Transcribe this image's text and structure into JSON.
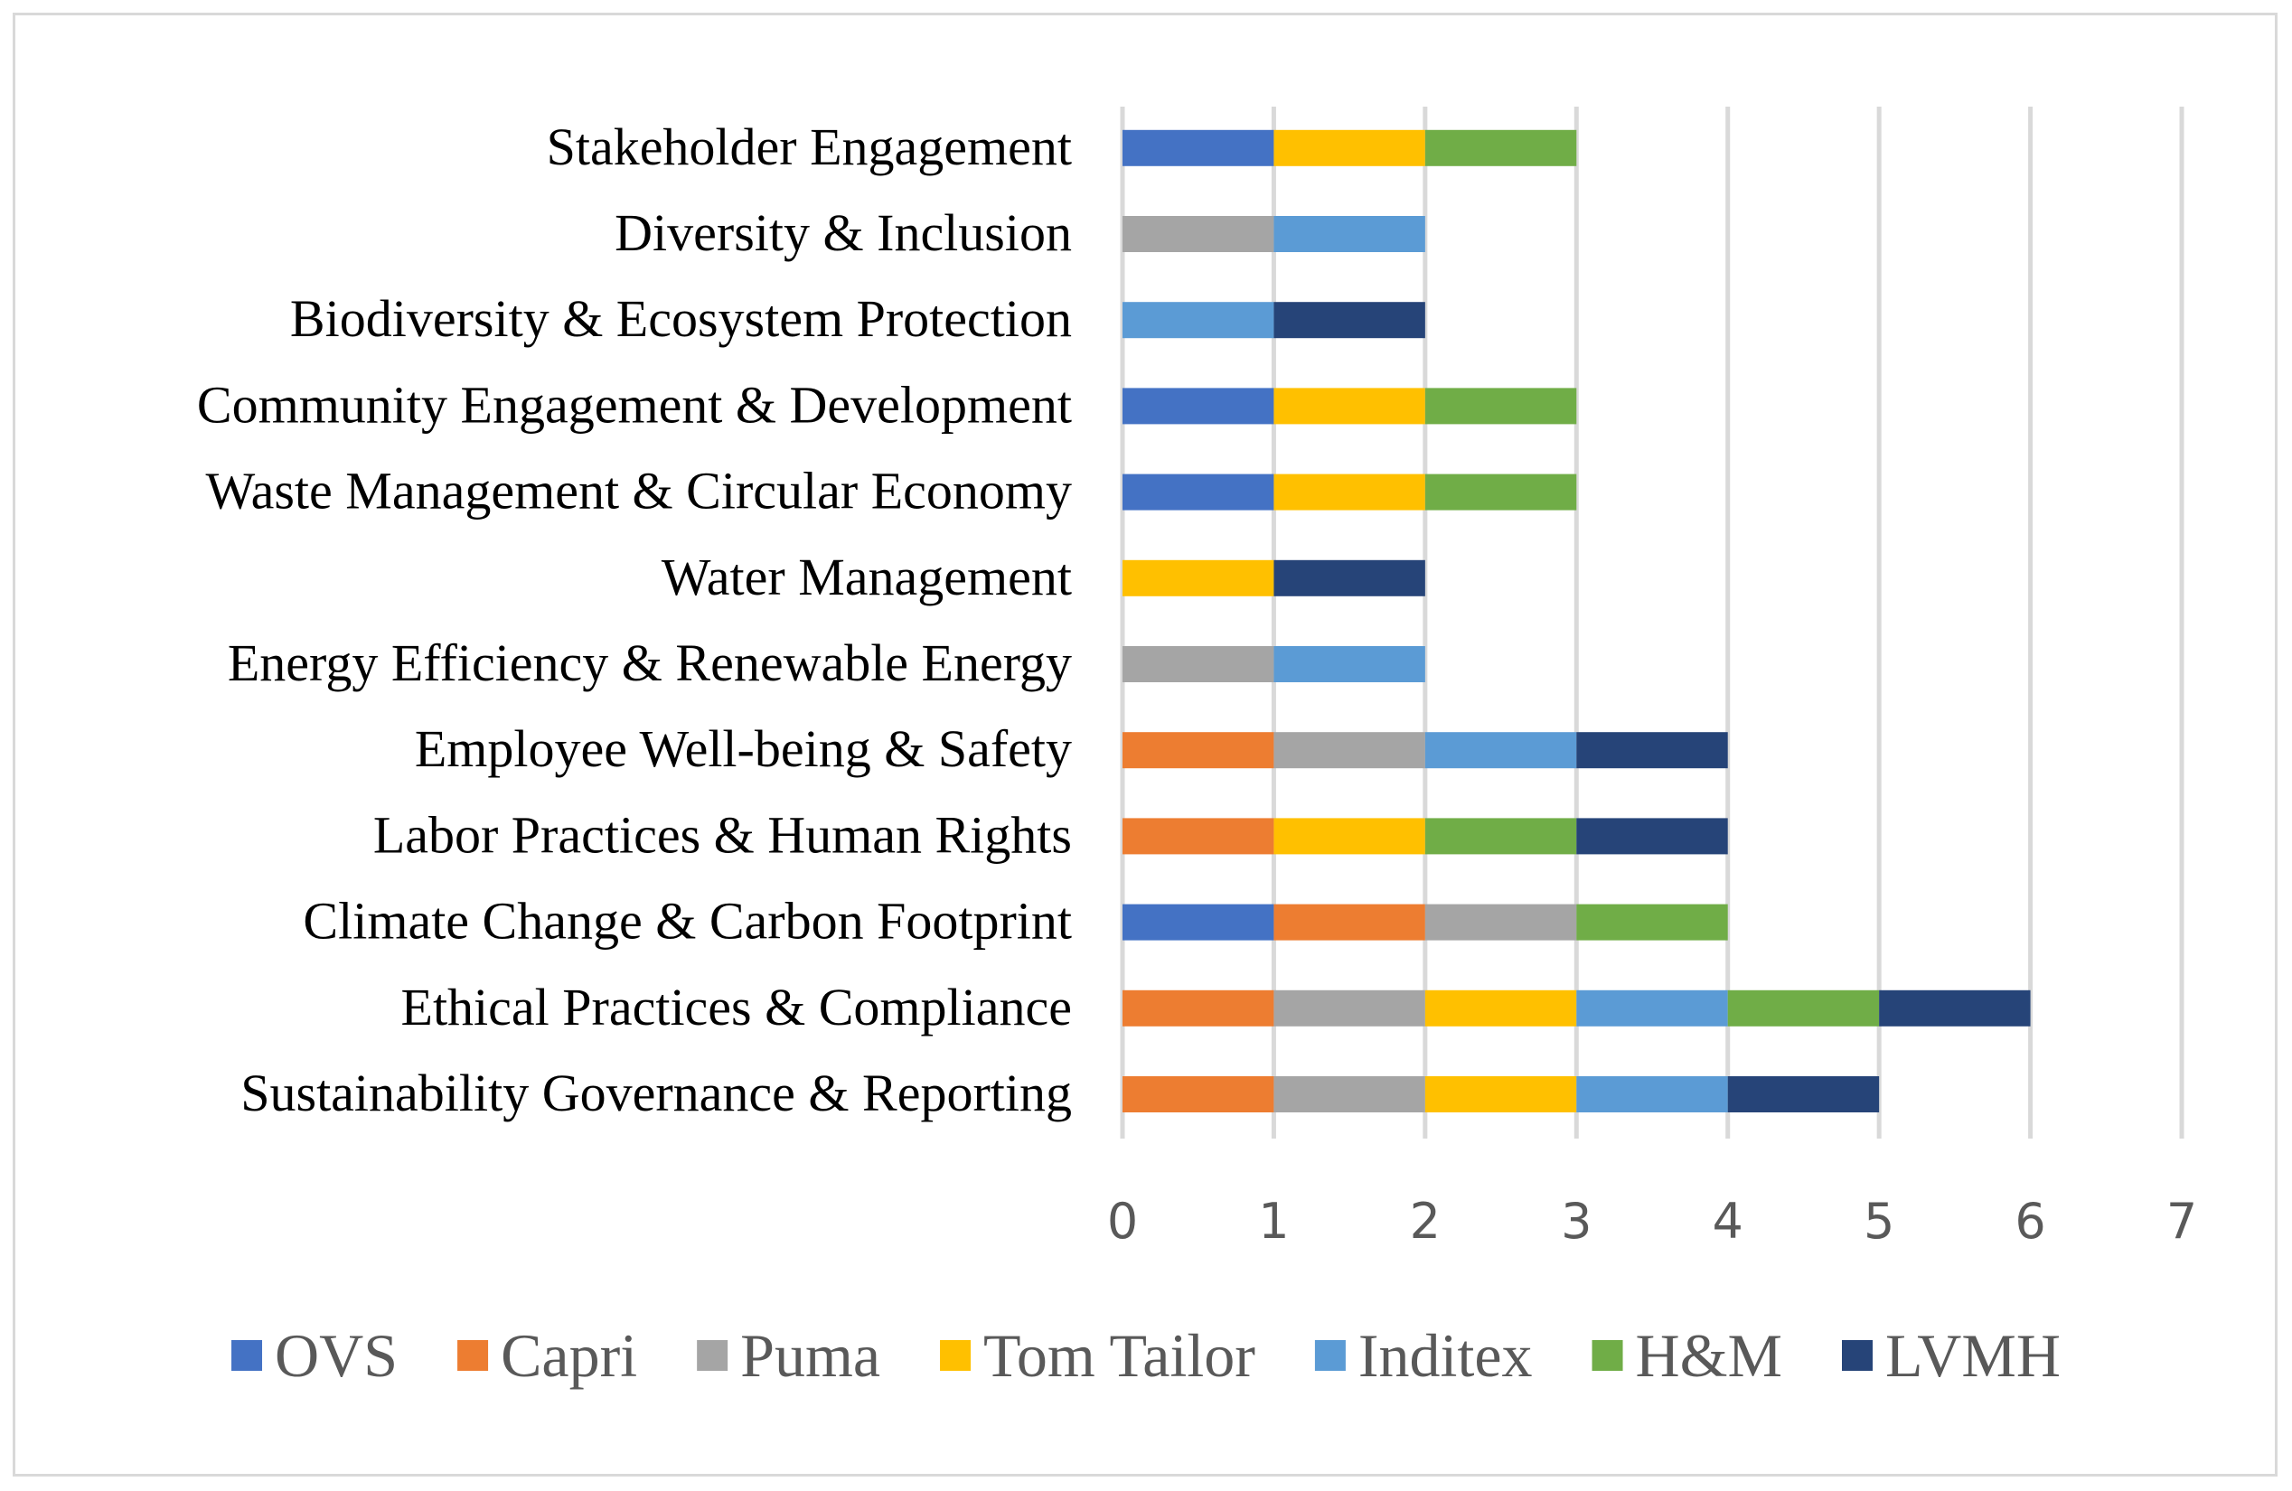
{
  "chart_data": {
    "type": "bar",
    "orientation": "horizontal",
    "stacked": true,
    "title": "",
    "xlabel": "",
    "ylabel": "",
    "xlim": [
      0,
      7
    ],
    "x_ticks": [
      "0",
      "1",
      "2",
      "3",
      "4",
      "5",
      "6",
      "7"
    ],
    "grid": true,
    "legend_position": "bottom",
    "categories": [
      "Sustainability Governance & Reporting",
      "Ethical Practices & Compliance",
      "Climate Change & Carbon Footprint",
      "Labor Practices & Human Rights",
      "Employee Well-being & Safety",
      "Energy Efficiency & Renewable Energy",
      "Water Management",
      "Waste Management & Circular Economy",
      "Community Engagement & Development",
      "Biodiversity & Ecosystem Protection",
      "Diversity & Inclusion",
      "Stakeholder Engagement"
    ],
    "series": [
      {
        "name": "OVS",
        "color": "#4472C4",
        "values": [
          0,
          0,
          1,
          0,
          0,
          0,
          0,
          1,
          1,
          0,
          0,
          1
        ]
      },
      {
        "name": "Capri",
        "color": "#ED7D31",
        "values": [
          1,
          1,
          1,
          1,
          1,
          0,
          0,
          0,
          0,
          0,
          0,
          0
        ]
      },
      {
        "name": "Puma",
        "color": "#A5A5A5",
        "values": [
          1,
          1,
          1,
          0,
          1,
          1,
          0,
          0,
          0,
          0,
          1,
          0
        ]
      },
      {
        "name": "Tom Tailor",
        "color": "#FFC000",
        "values": [
          1,
          1,
          0,
          1,
          0,
          0,
          1,
          1,
          1,
          0,
          0,
          1
        ]
      },
      {
        "name": "Inditex",
        "color": "#5B9BD5",
        "values": [
          1,
          1,
          0,
          0,
          1,
          1,
          0,
          0,
          0,
          1,
          1,
          0
        ]
      },
      {
        "name": "H&M",
        "color": "#70AD47",
        "values": [
          0,
          1,
          1,
          1,
          0,
          0,
          0,
          1,
          1,
          0,
          0,
          1
        ]
      },
      {
        "name": "LVMH",
        "color": "#264478",
        "values": [
          1,
          1,
          0,
          1,
          1,
          0,
          1,
          0,
          0,
          1,
          0,
          0
        ]
      }
    ]
  }
}
